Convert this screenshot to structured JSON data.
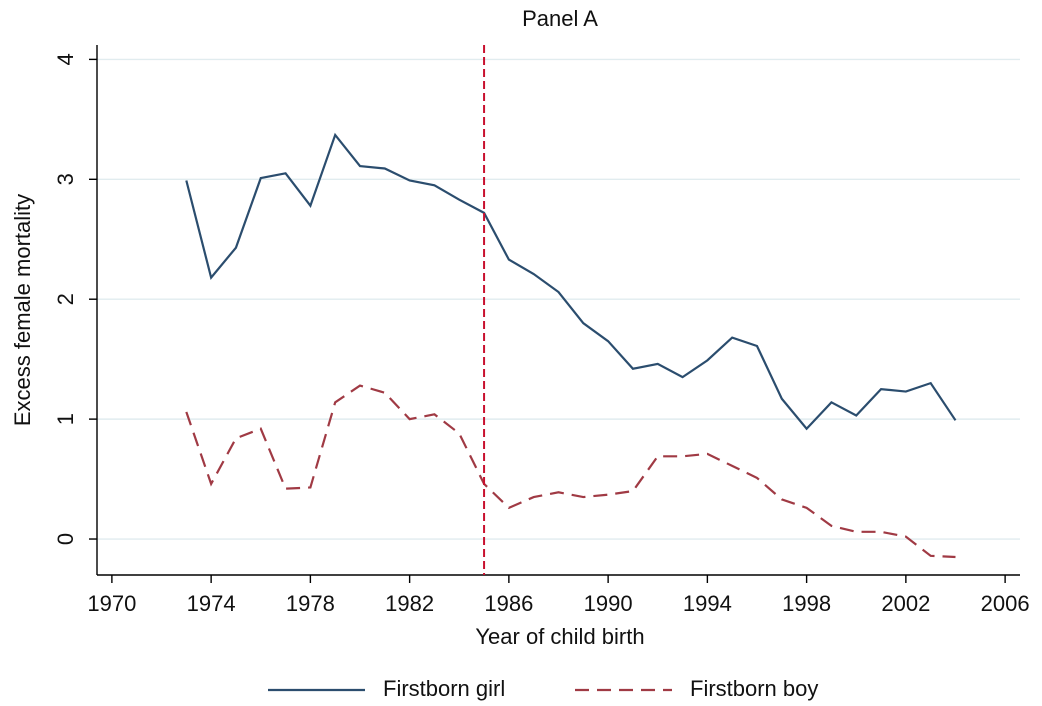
{
  "chart_data": {
    "type": "line",
    "title": "Panel A",
    "x_label": "Year of child birth",
    "y_label": "Excess female mortality",
    "x": [
      1973,
      1974,
      1975,
      1976,
      1977,
      1978,
      1979,
      1980,
      1981,
      1982,
      1983,
      1984,
      1985,
      1986,
      1987,
      1988,
      1989,
      1990,
      1991,
      1992,
      1993,
      1994,
      1995,
      1996,
      1997,
      1998,
      1999,
      2000,
      2001,
      2002,
      2003,
      2004
    ],
    "series": [
      {
        "name": "Firstborn girl",
        "color": "#2b4d6e",
        "dash": false,
        "values": [
          2.99,
          2.18,
          2.43,
          3.01,
          3.05,
          2.78,
          3.37,
          3.11,
          3.09,
          2.99,
          2.95,
          2.83,
          2.72,
          2.33,
          2.21,
          2.06,
          1.8,
          1.65,
          1.42,
          1.46,
          1.35,
          1.49,
          1.68,
          1.61,
          1.17,
          0.92,
          1.14,
          1.03,
          1.25,
          1.23,
          1.3,
          0.99
        ]
      },
      {
        "name": "Firstborn boy",
        "color": "#a03a44",
        "dash": true,
        "values": [
          1.06,
          0.46,
          0.84,
          0.92,
          0.42,
          0.43,
          1.14,
          1.28,
          1.22,
          1.0,
          1.04,
          0.88,
          0.46,
          0.26,
          0.35,
          0.39,
          0.35,
          0.37,
          0.4,
          0.69,
          0.69,
          0.71,
          0.61,
          0.51,
          0.33,
          0.26,
          0.11,
          0.06,
          0.06,
          0.02,
          -0.14,
          -0.15
        ]
      }
    ],
    "reference_line": {
      "x": 1985,
      "color": "#c8102e"
    },
    "xlim": [
      1969.4,
      2006.6
    ],
    "ylim": [
      -0.3,
      4.12
    ],
    "xticks": [
      1970,
      1974,
      1978,
      1982,
      1986,
      1990,
      1994,
      1998,
      2002,
      2006
    ],
    "yticks": [
      0,
      1,
      2,
      3,
      4
    ],
    "grid": true,
    "legend": "bottom"
  }
}
